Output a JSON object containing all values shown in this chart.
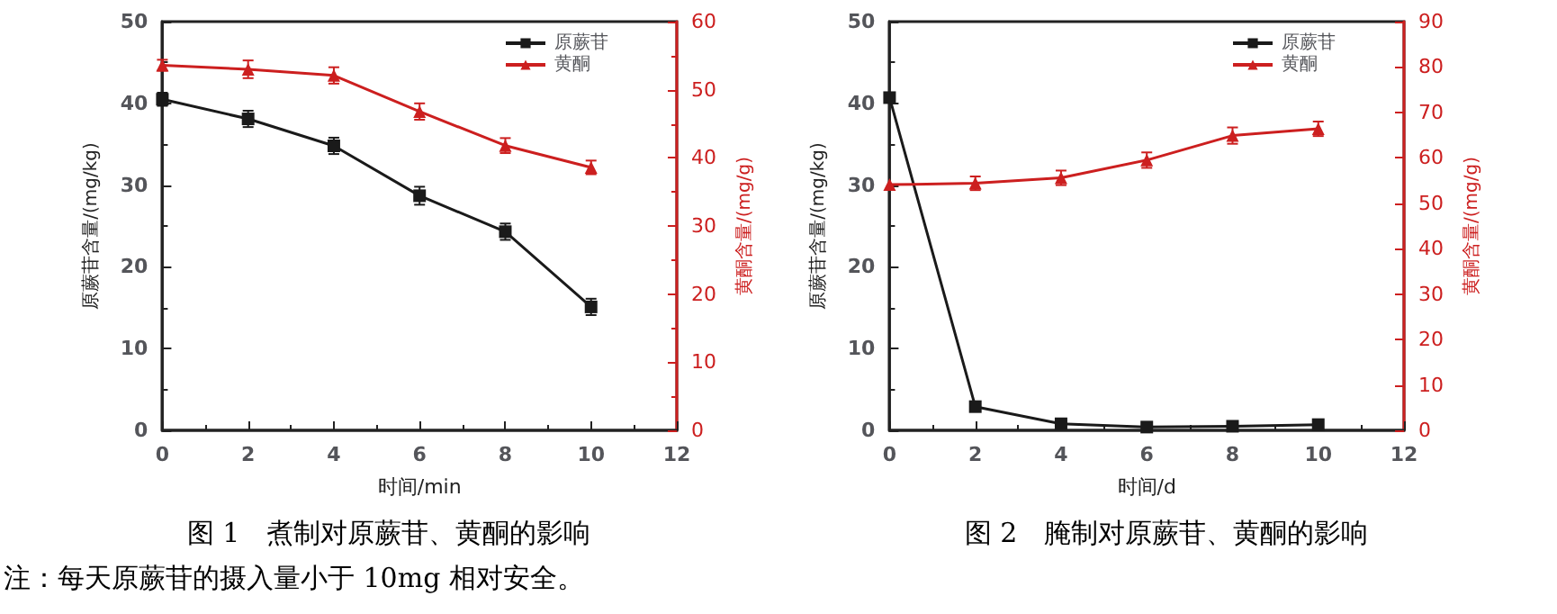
{
  "chart_data": [
    {
      "type": "line",
      "title": "图 1　煮制对原蕨苷、黄酮的影响",
      "xlabel": "时间/min",
      "ylabel": "原蕨苷含量/(mg/kg)",
      "y2label": "黄酮含量/(mg/g)",
      "x": [
        0,
        2,
        4,
        6,
        8,
        10
      ],
      "series": [
        {
          "name": "原蕨苷",
          "color": "#1a1a1a",
          "marker": "square",
          "values": [
            40.5,
            38.1,
            34.8,
            28.7,
            24.3,
            15.1
          ],
          "errors": [
            0.8,
            1.0,
            1.0,
            1.1,
            1.0,
            1.0
          ]
        },
        {
          "name": "黄酮",
          "color": "#cc1f1f",
          "marker": "triangle",
          "axis": "y2",
          "values": [
            53.6,
            53.0,
            52.1,
            46.8,
            41.8,
            38.6
          ],
          "errors": [
            0.8,
            1.3,
            1.2,
            1.2,
            1.1,
            1.0
          ]
        }
      ],
      "xlim": [
        0,
        12
      ],
      "xticks": [
        0,
        2,
        4,
        6,
        8,
        10,
        12
      ],
      "ylim": [
        0,
        50
      ],
      "yticks": [
        0,
        10,
        20,
        30,
        40,
        50
      ],
      "y2lim": [
        0,
        60
      ],
      "y2ticks": [
        0,
        10,
        20,
        30,
        40,
        50,
        60
      ],
      "grid": false,
      "legend": "top right",
      "line_style": "solid",
      "annotations": [
        "注：每天原蕨苷的摄入量小于 10mg 相对安全。"
      ]
    },
    {
      "type": "line",
      "title": "图 2　腌制对原蕨苷、黄酮的影响",
      "xlabel": "时间/d",
      "ylabel": "原蕨苷含量/(mg/kg)",
      "y2label": "黄酮含量/(mg/g)",
      "x": [
        0,
        2,
        4,
        6,
        8,
        10
      ],
      "series": [
        {
          "name": "原蕨苷",
          "color": "#1a1a1a",
          "marker": "square",
          "values": [
            40.7,
            2.9,
            0.8,
            0.4,
            0.5,
            0.7
          ]
        },
        {
          "name": "黄酮",
          "color": "#cc1f1f",
          "marker": "triangle",
          "axis": "y2",
          "values": [
            54.1,
            54.4,
            55.6,
            59.5,
            64.9,
            66.4
          ],
          "errors": [
            null,
            1.5,
            1.6,
            1.7,
            1.8,
            1.6
          ]
        }
      ],
      "xlim": [
        0,
        12
      ],
      "xticks": [
        0,
        2,
        4,
        6,
        8,
        10,
        12
      ],
      "ylim": [
        0,
        50
      ],
      "yticks": [
        0,
        10,
        20,
        30,
        40,
        50
      ],
      "y2lim": [
        0,
        90
      ],
      "y2ticks": [
        0,
        10,
        20,
        30,
        40,
        50,
        60,
        70,
        80,
        90
      ],
      "grid": false,
      "legend": "top right",
      "line_style": "solid"
    }
  ]
}
